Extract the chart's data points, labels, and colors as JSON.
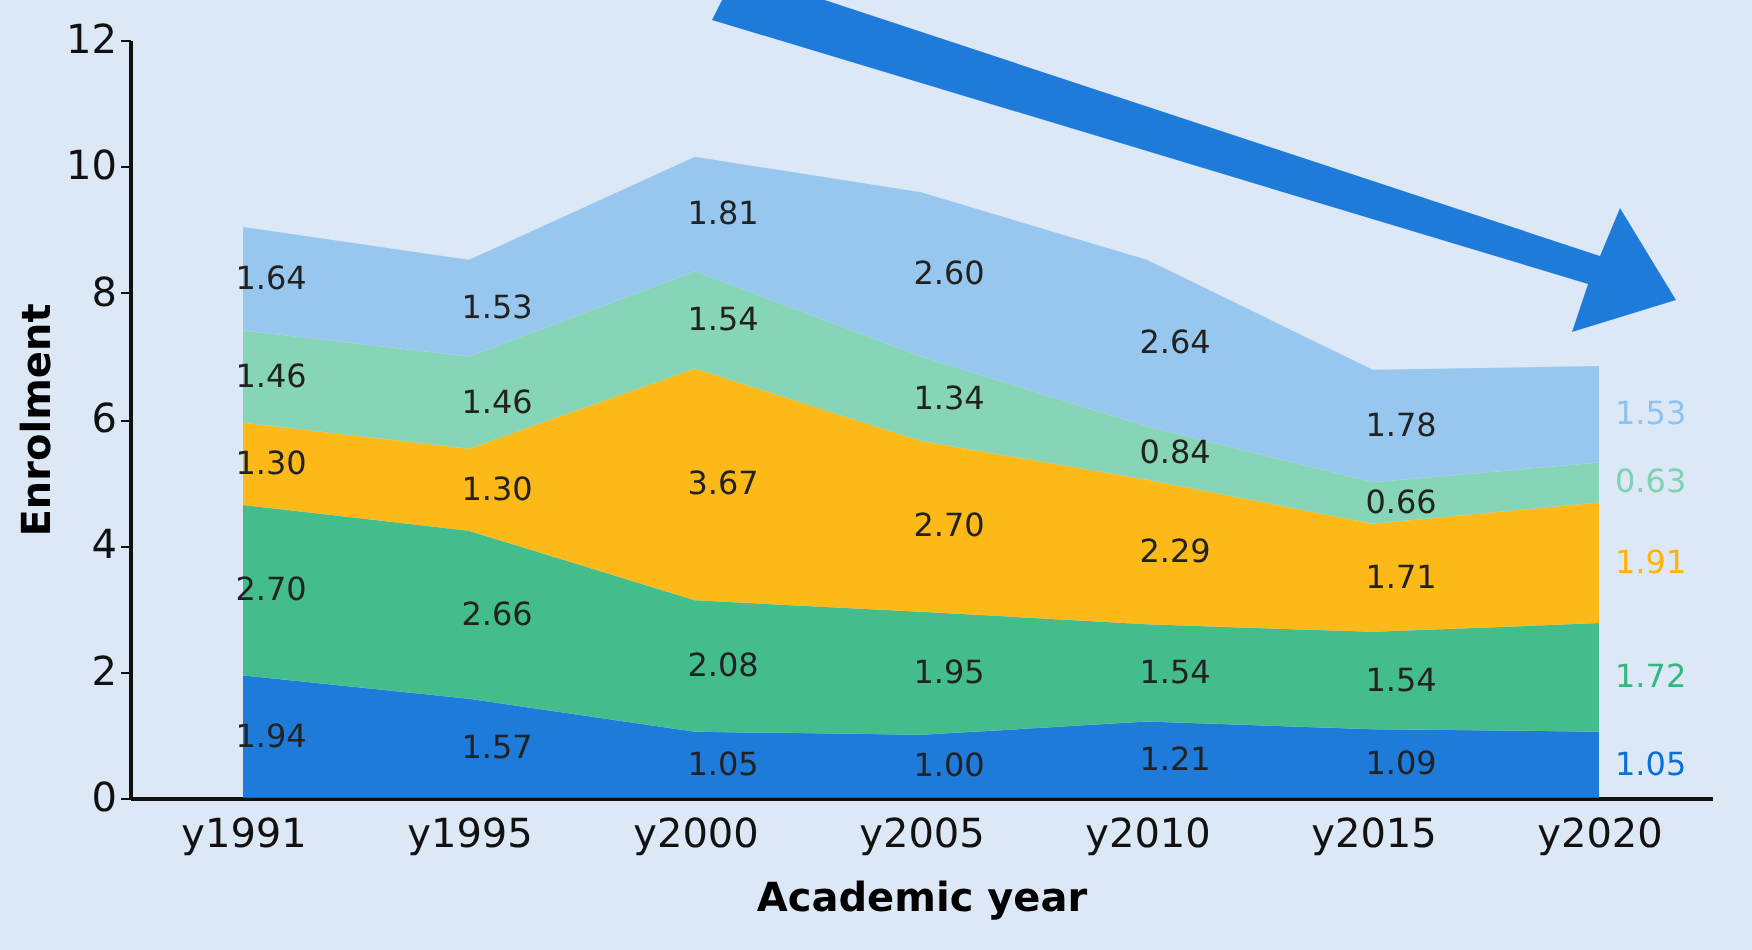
{
  "chart_data": {
    "type": "area",
    "stacked": true,
    "xlabel": "Academic year",
    "ylabel": "Enrolment",
    "categories": [
      "y1991",
      "y1995",
      "y2000",
      "y2005",
      "y2010",
      "y2015",
      "y2020"
    ],
    "series": [
      {
        "color": "#0a6fd6",
        "values": [
          1.94,
          1.57,
          1.05,
          1.0,
          1.21,
          1.09,
          1.05
        ],
        "value_labels": [
          "1.94",
          "1.57",
          "1.05",
          "1.00",
          "1.21",
          "1.09",
          "1.05"
        ]
      },
      {
        "color": "#33b882",
        "values": [
          2.7,
          2.66,
          2.08,
          1.95,
          1.54,
          1.54,
          1.72
        ],
        "value_labels": [
          "2.70",
          "2.66",
          "2.08",
          "1.95",
          "1.54",
          "1.54",
          "1.72"
        ]
      },
      {
        "color": "#ffb400",
        "values": [
          1.3,
          1.3,
          3.67,
          2.7,
          2.29,
          1.71,
          1.91
        ],
        "value_labels": [
          "1.30",
          "1.30",
          "3.67",
          "2.70",
          "2.29",
          "1.71",
          "1.91"
        ]
      },
      {
        "color": "#7dd3b0",
        "values": [
          1.46,
          1.46,
          1.54,
          1.34,
          0.84,
          0.66,
          0.63
        ],
        "value_labels": [
          "1.46",
          "1.46",
          "1.54",
          "1.34",
          "0.84",
          "0.66",
          "0.63"
        ]
      },
      {
        "color": "#8fc3ee",
        "values": [
          1.64,
          1.53,
          1.81,
          2.6,
          2.64,
          1.78,
          1.53
        ],
        "value_labels": [
          "1.64",
          "1.53",
          "1.81",
          "2.60",
          "2.64",
          "1.78",
          "1.53"
        ]
      }
    ],
    "ylim": [
      0,
      12
    ],
    "yticks": [
      0,
      2,
      4,
      6,
      8,
      10,
      12
    ],
    "grid": false,
    "legend": false
  }
}
